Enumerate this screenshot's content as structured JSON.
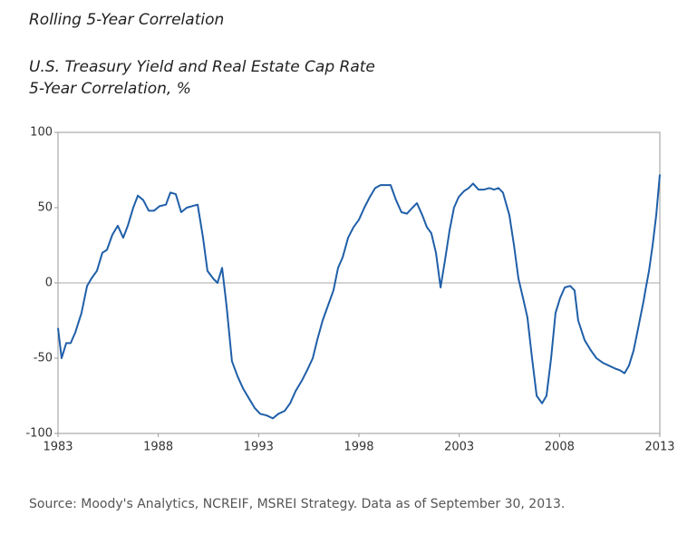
{
  "chart_data": {
    "type": "line",
    "title": "Rolling 5-Year Correlation",
    "subtitle": [
      "U.S. Treasury Yield and Real Estate Cap Rate",
      "5-Year Correlation, %"
    ],
    "source": "Source: Moody's Analytics, NCREIF, MSREI Strategy. Data as of September 30, 2013.",
    "x": [
      1983.0,
      1983.18,
      1983.41,
      1983.63,
      1983.86,
      1984.17,
      1984.45,
      1984.67,
      1984.94,
      1985.21,
      1985.44,
      1985.71,
      1985.98,
      1986.25,
      1986.48,
      1986.75,
      1986.98,
      1987.25,
      1987.52,
      1987.79,
      1988.06,
      1988.38,
      1988.6,
      1988.87,
      1989.14,
      1989.42,
      1989.69,
      1989.96,
      1990.23,
      1990.45,
      1990.73,
      1990.95,
      1991.18,
      1991.4,
      1991.67,
      1991.95,
      1992.22,
      1992.53,
      1992.8,
      1993.08,
      1993.39,
      1993.71,
      1993.98,
      1994.3,
      1994.57,
      1994.84,
      1995.15,
      1995.42,
      1995.7,
      1995.92,
      1996.19,
      1996.46,
      1996.73,
      1996.96,
      1997.19,
      1997.46,
      1997.73,
      1998.0,
      1998.27,
      1998.54,
      1998.81,
      1999.08,
      1999.36,
      1999.58,
      1999.85,
      2000.12,
      2000.39,
      2000.67,
      2000.89,
      2001.16,
      2001.39,
      2001.61,
      2001.84,
      2002.07,
      2002.29,
      2002.52,
      2002.74,
      2002.97,
      2003.24,
      2003.47,
      2003.69,
      2003.96,
      2004.23,
      2004.51,
      2004.73,
      2004.96,
      2005.18,
      2005.5,
      2005.73,
      2005.95,
      2006.18,
      2006.4,
      2006.63,
      2006.86,
      2007.13,
      2007.35,
      2007.58,
      2007.8,
      2008.03,
      2008.26,
      2008.53,
      2008.75,
      2008.93,
      2009.25,
      2009.57,
      2009.84,
      2010.15,
      2010.47,
      2010.79,
      2011.01,
      2011.24,
      2011.46,
      2011.69,
      2011.92,
      2012.19,
      2012.28,
      2012.46,
      2012.64,
      2012.82,
      2013.0
    ],
    "series": [
      {
        "color": "#1f5fa8",
        "values": [
          -30,
          -50,
          -40,
          -40,
          -33,
          -20,
          -2,
          3,
          8,
          20,
          22,
          32,
          38,
          30,
          38,
          50,
          58,
          55,
          48,
          48,
          51,
          52,
          60,
          59,
          47,
          50,
          51,
          52,
          30,
          8,
          3,
          0,
          10,
          -15,
          -52,
          -62,
          -70,
          -77,
          -83,
          -87,
          -88,
          -90,
          -87,
          -85,
          -80,
          -72,
          -65,
          -58,
          -50,
          -38,
          -25,
          -15,
          -5,
          10,
          17,
          30,
          37,
          42,
          50,
          57,
          63,
          65,
          65,
          65,
          55,
          47,
          46,
          50,
          53,
          45,
          37,
          33,
          20,
          -3,
          15,
          35,
          50,
          57,
          61,
          63,
          66,
          62,
          62,
          63,
          62,
          63,
          60,
          45,
          25,
          3,
          -10,
          -23,
          -50,
          -75,
          -80,
          -75,
          -50,
          -20,
          -10,
          -3,
          -2,
          -5,
          -25,
          -38,
          -45,
          -50,
          -53,
          -55,
          -57,
          -58,
          -60,
          -55,
          -45,
          -30,
          -12,
          -5,
          8,
          25,
          45,
          72
        ]
      }
    ],
    "xlim": [
      1983,
      2013
    ],
    "xticks": [
      1983,
      1988,
      1993,
      1998,
      2003,
      2008,
      2013
    ],
    "ylim": [
      -100,
      100
    ],
    "yticks": [
      -100,
      -50,
      0,
      50,
      100
    ]
  }
}
